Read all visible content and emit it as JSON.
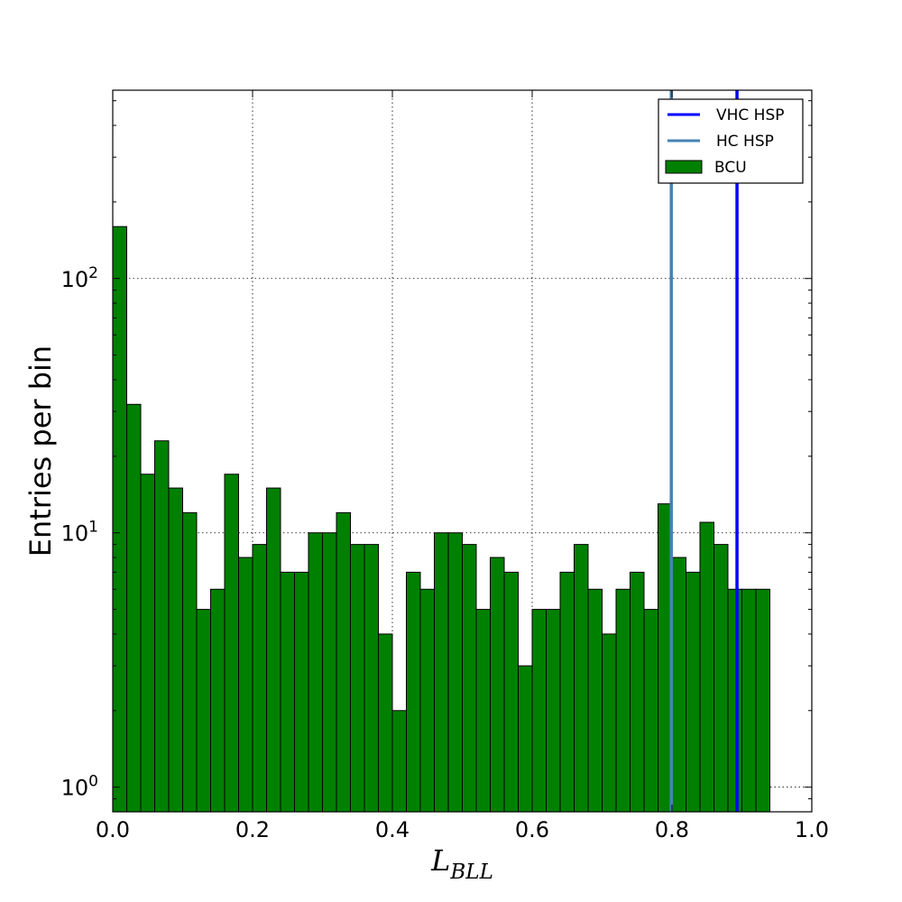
{
  "chart_data": {
    "type": "bar",
    "xlabel": "L",
    "xlabel_sub": "BLL",
    "ylabel": "Entries per bin",
    "xlim": [
      0.0,
      1.0
    ],
    "ylim": [
      0.8,
      550
    ],
    "yscale": "log",
    "grid": true,
    "legend_position": "top-right",
    "bin_width": 0.02,
    "x_ticks": [
      "0.0",
      "0.2",
      "0.4",
      "0.6",
      "0.8",
      "1.0"
    ],
    "x_tick_values": [
      0.0,
      0.2,
      0.4,
      0.6,
      0.8,
      1.0
    ],
    "y_ticks": [
      {
        "value": 1,
        "base": "10",
        "exp": "0"
      },
      {
        "value": 10,
        "base": "10",
        "exp": "1"
      },
      {
        "value": 100,
        "base": "10",
        "exp": "2"
      }
    ],
    "series": [
      {
        "name": "BCU",
        "kind": "histogram",
        "color": "#008000",
        "bin_starts": [
          0.0,
          0.02,
          0.04,
          0.06,
          0.08,
          0.1,
          0.12,
          0.14,
          0.16,
          0.18,
          0.2,
          0.22,
          0.24,
          0.26,
          0.28,
          0.3,
          0.32,
          0.34,
          0.36,
          0.38,
          0.4,
          0.42,
          0.44,
          0.46,
          0.48,
          0.5,
          0.52,
          0.54,
          0.56,
          0.58,
          0.6,
          0.62,
          0.64,
          0.66,
          0.68,
          0.7,
          0.72,
          0.74,
          0.76,
          0.78,
          0.8,
          0.82,
          0.84,
          0.86,
          0.88,
          0.9,
          0.92
        ],
        "values": [
          160,
          32,
          17,
          23,
          15,
          12,
          5,
          6,
          17,
          8,
          9,
          15,
          7,
          7,
          10,
          10,
          12,
          9,
          9,
          4,
          2,
          7,
          6,
          10,
          10,
          9,
          5,
          8,
          7,
          3,
          5,
          5,
          7,
          9,
          6,
          4,
          6,
          7,
          5,
          13,
          8,
          7,
          11,
          9,
          6,
          6,
          6
        ]
      }
    ],
    "vlines": [
      {
        "name": "VHC HSP",
        "x": 0.893,
        "color": "#0000ff"
      },
      {
        "name": "HC HSP",
        "x": 0.799,
        "color": "#4682b4"
      }
    ]
  }
}
